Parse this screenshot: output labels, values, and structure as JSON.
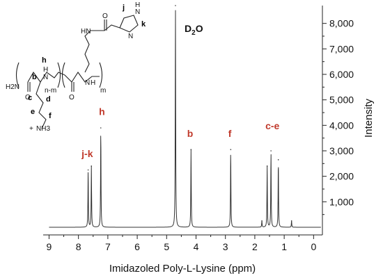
{
  "colors": {
    "label_red": "#c0392b",
    "axis": "#222222",
    "spectrum": "#333333"
  },
  "chart_data": {
    "type": "line",
    "xlabel": "Imidazoled Poly-L-Lysine (ppm)",
    "ylabel": "Intensity",
    "xlim": [
      9.2,
      -0.3
    ],
    "ylim": [
      -300,
      8700
    ],
    "x_reversed": true,
    "x_ticks": [
      9,
      8,
      7,
      6,
      5,
      4,
      3,
      2,
      1,
      0
    ],
    "y_ticks": [
      1000,
      2000,
      3000,
      4000,
      5000,
      6000,
      7000,
      8000
    ],
    "y_tick_labels": [
      "1,000",
      "2,000",
      "3,000",
      "4,000",
      "5,000",
      "6,000",
      "7,000",
      "8,000"
    ],
    "y_axis_side": "right",
    "solvent_peak": {
      "label_main": "D",
      "label_sub": "2",
      "label_end": "O",
      "x": 4.7,
      "y": 8700
    },
    "peaks": [
      {
        "x": 7.67,
        "y": 2250
      },
      {
        "x": 7.56,
        "y": 2400
      },
      {
        "x": 7.24,
        "y": 3900
      },
      {
        "x": 4.7,
        "y": 8700
      },
      {
        "x": 4.17,
        "y": 3050
      },
      {
        "x": 2.82,
        "y": 3050
      },
      {
        "x": 1.76,
        "y": 250
      },
      {
        "x": 1.58,
        "y": 2400
      },
      {
        "x": 1.45,
        "y": 3000
      },
      {
        "x": 1.2,
        "y": 2650
      },
      {
        "x": 0.75,
        "y": 250
      }
    ],
    "annotations": [
      {
        "text": "j-k",
        "x": 7.7,
        "y": 2750
      },
      {
        "text": "h",
        "x": 7.2,
        "y": 4400
      },
      {
        "text": "b",
        "x": 4.2,
        "y": 3550
      },
      {
        "text": "f",
        "x": 2.85,
        "y": 3550
      },
      {
        "text": "c-e",
        "x": 1.4,
        "y": 3850
      }
    ]
  },
  "structure": {
    "atom_labels": {
      "h2n": "H2N",
      "o_amide": "O",
      "nh_backbone": "N",
      "h_backbone": "H",
      "nh3": "NH3",
      "plus": "+",
      "nh_side": "HN",
      "o_side": "O",
      "o_top": "O",
      "n_ring_1": "N",
      "n_ring_2": "N",
      "h_ring": "H",
      "nh_end": "N",
      "h_end": "H",
      "n_m": "n-m",
      "m": "m"
    },
    "proton_labels": {
      "j": "j",
      "k": "k",
      "h": "h",
      "b": "b",
      "c": "c",
      "d": "d",
      "e": "e",
      "f": "f"
    }
  }
}
